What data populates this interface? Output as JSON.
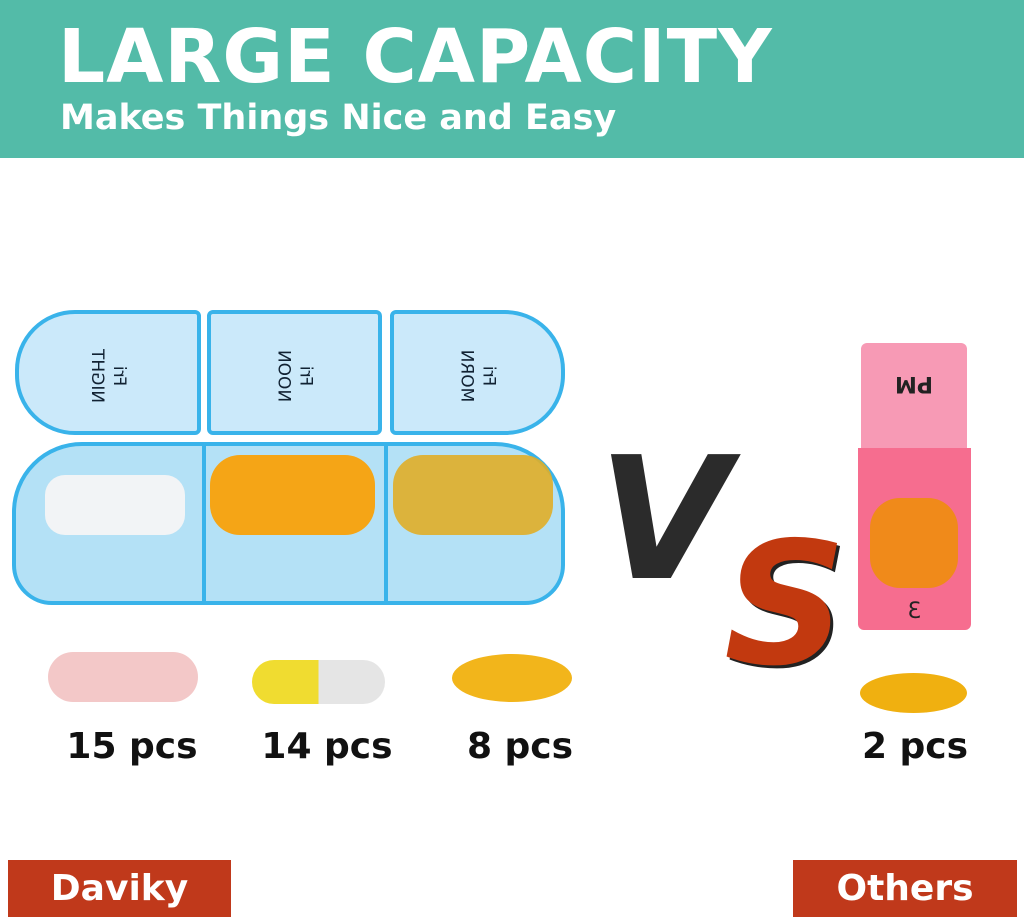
{
  "banner": {
    "title": "LARGE CAPACITY",
    "subtitle": "Makes Things Nice and Easy",
    "color": "#53bba8"
  },
  "daviky_box": {
    "color": "#39b3ea",
    "compartments": [
      {
        "day": "Fri",
        "time": "NIGHT",
        "pill": "white tablets",
        "count": "15 pcs"
      },
      {
        "day": "Fri",
        "time": "NOON",
        "pill": "yellow capsules",
        "count": "14 pcs"
      },
      {
        "day": "Fri",
        "time": "MORN",
        "pill": "softgels",
        "count": "8 pcs"
      }
    ]
  },
  "vs": {
    "v": "V",
    "s": "S",
    "v_color": "#2b2b2b",
    "s_color": "#c2390f"
  },
  "others_box": {
    "color": "#f56b8c",
    "lid_label": "PM",
    "number": "3",
    "count": "2 pcs"
  },
  "labels": {
    "left": "Daviky",
    "right": "Others",
    "color": "#c0391b"
  }
}
